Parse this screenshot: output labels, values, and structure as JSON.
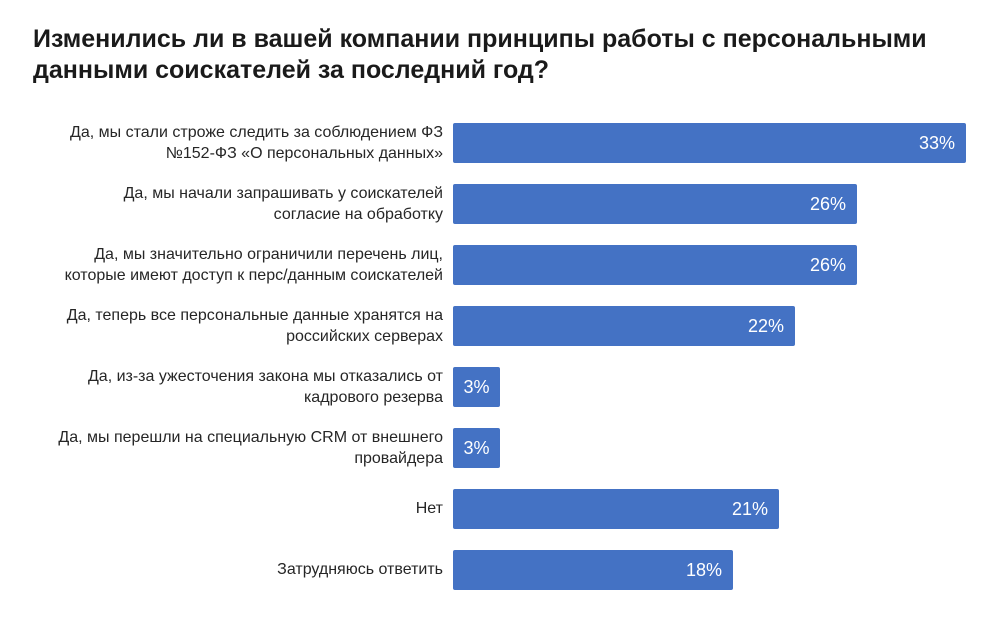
{
  "page": {
    "background": "#ffffff"
  },
  "chart_data": {
    "type": "bar",
    "orientation": "horizontal",
    "title": "Изменились ли в вашей компании принципы работы с персональными\nданными соискателей за последний год?",
    "categories": [
      "Да, мы стали строже следить за соблюдением ФЗ\n№152-ФЗ «О персональных данных»",
      "Да, мы начали запрашивать у соискателей\nсогласие на обработку",
      "Да, мы значительно ограничили перечень лиц,\nкоторые имеют доступ к перс/данным соискателей",
      "Да, теперь все персональные данные хранятся на\nроссийских серверах",
      "Да, из-за ужесточения закона мы отказались от\nкадрового резерва",
      "Да, мы перешли на специальную CRM от внешнего\nпровайдера",
      "Нет",
      "Затрудняюсь ответить"
    ],
    "values": [
      33,
      26,
      26,
      22,
      3,
      3,
      21,
      18
    ],
    "value_labels": [
      "33%",
      "26%",
      "26%",
      "22%",
      "3%",
      "3%",
      "21%",
      "18%"
    ],
    "xlabel": "",
    "ylabel": "",
    "xlim": [
      0,
      33
    ],
    "grid": false,
    "legend": false,
    "bar_color": "#4472C4",
    "value_label_color": "#ffffff",
    "title_color": "#1a1a1a",
    "category_label_color": "#262626"
  }
}
